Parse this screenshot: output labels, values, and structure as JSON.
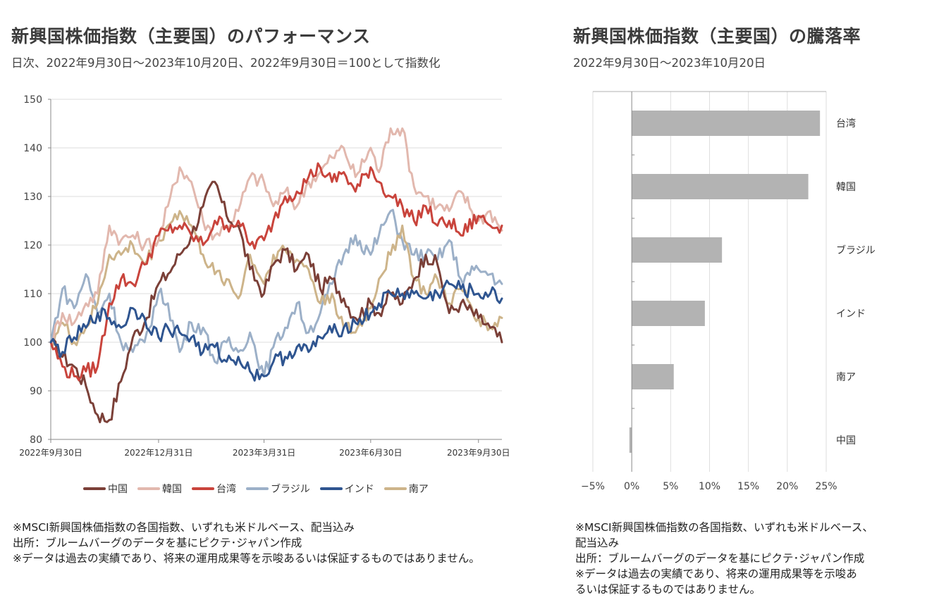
{
  "left_panel": {
    "title": "新興国株価指数（主要国）のパフォーマンス",
    "subtitle": "日次、2022年9月30日～2023年10月20日、2022年9月30日＝100として指数化",
    "notes": [
      "※MSCI新興国株価指数の各国指数、いずれも米ドルベース、配当込み",
      "出所：ブルームバーグのデータを基にピクテ･ジャパン作成",
      "※データは過去の実績であり、将来の運用成果等を示唆あるいは保証するものではありません。"
    ]
  },
  "right_panel": {
    "title": "新興国株価指数（主要国）の騰落率",
    "subtitle": "2022年9月30日～2023年10月20日",
    "notes": [
      "※MSCI新興国株価指数の各国指数、いずれも米ドルベース、",
      "配当込み",
      "出所：ブルームバーグのデータを基にピクテ･ジャパン作成",
      "※データは過去の実績であり、将来の運用成果等を示唆あ",
      "るいは保証するものではありません。"
    ]
  },
  "chart_data": [
    {
      "type": "line",
      "title": "新興国株価指数（主要国）のパフォーマンス",
      "xlabel": "",
      "ylabel": "",
      "ylim": [
        80,
        150
      ],
      "yticks": [
        80,
        90,
        100,
        110,
        120,
        130,
        140,
        150
      ],
      "grid": true,
      "legend_position": "bottom",
      "x_tick_labels": [
        "2022年9月30日",
        "2022年12月31日",
        "2023年3月31日",
        "2023年6月30日",
        "2023年9月30日"
      ],
      "x_tick_positions_days": [
        0,
        92,
        182,
        273,
        365
      ],
      "x_range_days": [
        0,
        385
      ],
      "x_sample_days": [
        0,
        10,
        20,
        30,
        40,
        50,
        60,
        70,
        80,
        92,
        100,
        110,
        120,
        130,
        140,
        150,
        160,
        170,
        182,
        190,
        200,
        210,
        220,
        230,
        240,
        250,
        260,
        273,
        280,
        290,
        300,
        310,
        320,
        330,
        340,
        350,
        365,
        375,
        385
      ],
      "series": [
        {
          "name": "中国",
          "color": "#7b4038",
          "values": [
            100,
            97,
            95,
            91,
            85,
            84,
            92,
            101,
            104,
            112,
            114,
            118,
            122,
            128,
            133,
            126,
            124,
            115,
            110,
            116,
            119,
            115,
            118,
            111,
            113,
            109,
            105,
            108,
            106,
            110,
            108,
            113,
            118,
            116,
            106,
            108,
            105,
            103,
            100
          ]
        },
        {
          "name": "韓国",
          "color": "#e2b8ae",
          "values": [
            100,
            106,
            104,
            108,
            110,
            124,
            121,
            122,
            120,
            121,
            128,
            136,
            133,
            125,
            122,
            124,
            127,
            134,
            133,
            128,
            131,
            128,
            133,
            135,
            138,
            140,
            134,
            140,
            135,
            144,
            144,
            132,
            130,
            128,
            127,
            131,
            125,
            127,
            123
          ]
        },
        {
          "name": "台湾",
          "color": "#c9443c",
          "values": [
            100,
            95,
            93,
            94,
            95,
            108,
            113,
            112,
            116,
            122,
            123,
            124,
            122,
            120,
            125,
            124,
            125,
            120,
            121,
            125,
            130,
            131,
            134,
            136,
            133,
            135,
            131,
            136,
            133,
            130,
            128,
            125,
            128,
            124,
            125,
            122,
            126,
            124,
            124
          ]
        },
        {
          "name": "ブラジル",
          "color": "#9cb0c8",
          "values": [
            100,
            111,
            107,
            114,
            106,
            110,
            100,
            98,
            100,
            110,
            108,
            98,
            104,
            103,
            96,
            100,
            98,
            102,
            93,
            99,
            103,
            108,
            102,
            106,
            112,
            118,
            122,
            118,
            122,
            127,
            121,
            118,
            118,
            117,
            121,
            113,
            115,
            114,
            112
          ]
        },
        {
          "name": "インド",
          "color": "#2f5590",
          "values": [
            100,
            98,
            101,
            103,
            106,
            105,
            103,
            107,
            105,
            101,
            103,
            102,
            101,
            98,
            99,
            96,
            97,
            94,
            93,
            96,
            97,
            99,
            98,
            101,
            102,
            103,
            104,
            106,
            108,
            110,
            110,
            110,
            109,
            110,
            112,
            111,
            110,
            110,
            109
          ]
        },
        {
          "name": "南ア",
          "color": "#cdb48a",
          "values": [
            100,
            104,
            100,
            103,
            108,
            118,
            118,
            120,
            116,
            121,
            124,
            127,
            124,
            118,
            114,
            113,
            109,
            118,
            112,
            118,
            119,
            117,
            115,
            108,
            110,
            103,
            102,
            107,
            113,
            118,
            124,
            113,
            110,
            113,
            108,
            111,
            105,
            103,
            105
          ]
        }
      ]
    },
    {
      "type": "bar",
      "orientation": "horizontal",
      "title": "新興国株価指数（主要国）の騰落率",
      "categories": [
        "台湾",
        "韓国",
        "ブラジル",
        "インド",
        "南ア",
        "中国"
      ],
      "values": [
        24.2,
        22.7,
        11.6,
        9.4,
        5.4,
        -0.3
      ],
      "unit": "%",
      "xlim": [
        -5,
        25
      ],
      "xticks": [
        -5,
        0,
        5,
        10,
        15,
        20,
        25
      ],
      "x_tick_labels": [
        "−5%",
        "0%",
        "5%",
        "10%",
        "15%",
        "20%",
        "25%"
      ],
      "bar_color": "#b3b3b3",
      "category_labels_position": "right",
      "grid": true
    }
  ]
}
